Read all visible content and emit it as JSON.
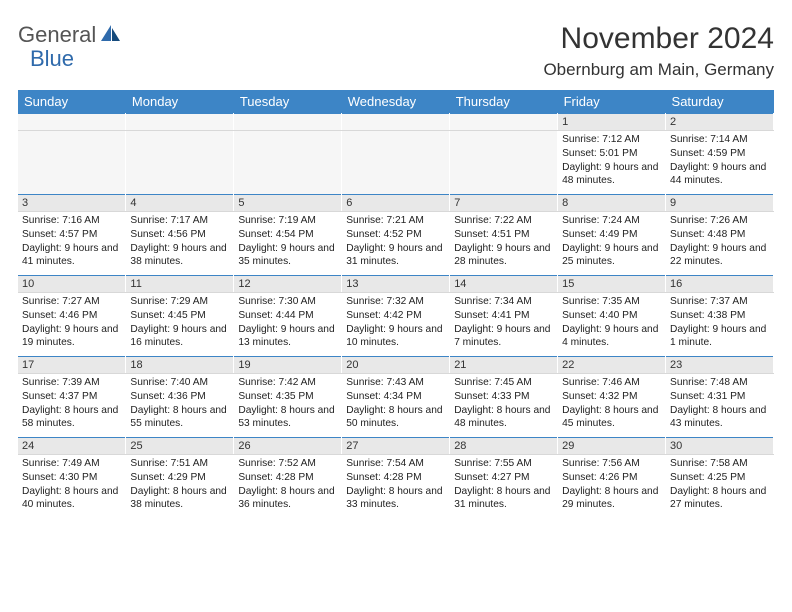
{
  "logo": {
    "part1": "General",
    "part2": "Blue"
  },
  "title": "November 2024",
  "location": "Obernburg am Main, Germany",
  "weekdays": [
    "Sunday",
    "Monday",
    "Tuesday",
    "Wednesday",
    "Thursday",
    "Friday",
    "Saturday"
  ],
  "colors": {
    "header_bg": "#3d85c6",
    "header_fg": "#ffffff",
    "daynum_bg": "#e8e8e8",
    "border_top": "#3d85c6",
    "logo_gray": "#555555",
    "logo_blue": "#2f6aab"
  },
  "weeks": [
    [
      null,
      null,
      null,
      null,
      null,
      {
        "n": "1",
        "sr": "7:12 AM",
        "ss": "5:01 PM",
        "dl": "9 hours and 48 minutes."
      },
      {
        "n": "2",
        "sr": "7:14 AM",
        "ss": "4:59 PM",
        "dl": "9 hours and 44 minutes."
      }
    ],
    [
      {
        "n": "3",
        "sr": "7:16 AM",
        "ss": "4:57 PM",
        "dl": "9 hours and 41 minutes."
      },
      {
        "n": "4",
        "sr": "7:17 AM",
        "ss": "4:56 PM",
        "dl": "9 hours and 38 minutes."
      },
      {
        "n": "5",
        "sr": "7:19 AM",
        "ss": "4:54 PM",
        "dl": "9 hours and 35 minutes."
      },
      {
        "n": "6",
        "sr": "7:21 AM",
        "ss": "4:52 PM",
        "dl": "9 hours and 31 minutes."
      },
      {
        "n": "7",
        "sr": "7:22 AM",
        "ss": "4:51 PM",
        "dl": "9 hours and 28 minutes."
      },
      {
        "n": "8",
        "sr": "7:24 AM",
        "ss": "4:49 PM",
        "dl": "9 hours and 25 minutes."
      },
      {
        "n": "9",
        "sr": "7:26 AM",
        "ss": "4:48 PM",
        "dl": "9 hours and 22 minutes."
      }
    ],
    [
      {
        "n": "10",
        "sr": "7:27 AM",
        "ss": "4:46 PM",
        "dl": "9 hours and 19 minutes."
      },
      {
        "n": "11",
        "sr": "7:29 AM",
        "ss": "4:45 PM",
        "dl": "9 hours and 16 minutes."
      },
      {
        "n": "12",
        "sr": "7:30 AM",
        "ss": "4:44 PM",
        "dl": "9 hours and 13 minutes."
      },
      {
        "n": "13",
        "sr": "7:32 AM",
        "ss": "4:42 PM",
        "dl": "9 hours and 10 minutes."
      },
      {
        "n": "14",
        "sr": "7:34 AM",
        "ss": "4:41 PM",
        "dl": "9 hours and 7 minutes."
      },
      {
        "n": "15",
        "sr": "7:35 AM",
        "ss": "4:40 PM",
        "dl": "9 hours and 4 minutes."
      },
      {
        "n": "16",
        "sr": "7:37 AM",
        "ss": "4:38 PM",
        "dl": "9 hours and 1 minute."
      }
    ],
    [
      {
        "n": "17",
        "sr": "7:39 AM",
        "ss": "4:37 PM",
        "dl": "8 hours and 58 minutes."
      },
      {
        "n": "18",
        "sr": "7:40 AM",
        "ss": "4:36 PM",
        "dl": "8 hours and 55 minutes."
      },
      {
        "n": "19",
        "sr": "7:42 AM",
        "ss": "4:35 PM",
        "dl": "8 hours and 53 minutes."
      },
      {
        "n": "20",
        "sr": "7:43 AM",
        "ss": "4:34 PM",
        "dl": "8 hours and 50 minutes."
      },
      {
        "n": "21",
        "sr": "7:45 AM",
        "ss": "4:33 PM",
        "dl": "8 hours and 48 minutes."
      },
      {
        "n": "22",
        "sr": "7:46 AM",
        "ss": "4:32 PM",
        "dl": "8 hours and 45 minutes."
      },
      {
        "n": "23",
        "sr": "7:48 AM",
        "ss": "4:31 PM",
        "dl": "8 hours and 43 minutes."
      }
    ],
    [
      {
        "n": "24",
        "sr": "7:49 AM",
        "ss": "4:30 PM",
        "dl": "8 hours and 40 minutes."
      },
      {
        "n": "25",
        "sr": "7:51 AM",
        "ss": "4:29 PM",
        "dl": "8 hours and 38 minutes."
      },
      {
        "n": "26",
        "sr": "7:52 AM",
        "ss": "4:28 PM",
        "dl": "8 hours and 36 minutes."
      },
      {
        "n": "27",
        "sr": "7:54 AM",
        "ss": "4:28 PM",
        "dl": "8 hours and 33 minutes."
      },
      {
        "n": "28",
        "sr": "7:55 AM",
        "ss": "4:27 PM",
        "dl": "8 hours and 31 minutes."
      },
      {
        "n": "29",
        "sr": "7:56 AM",
        "ss": "4:26 PM",
        "dl": "8 hours and 29 minutes."
      },
      {
        "n": "30",
        "sr": "7:58 AM",
        "ss": "4:25 PM",
        "dl": "8 hours and 27 minutes."
      }
    ]
  ],
  "labels": {
    "sunrise": "Sunrise: ",
    "sunset": "Sunset: ",
    "daylight": "Daylight: "
  }
}
